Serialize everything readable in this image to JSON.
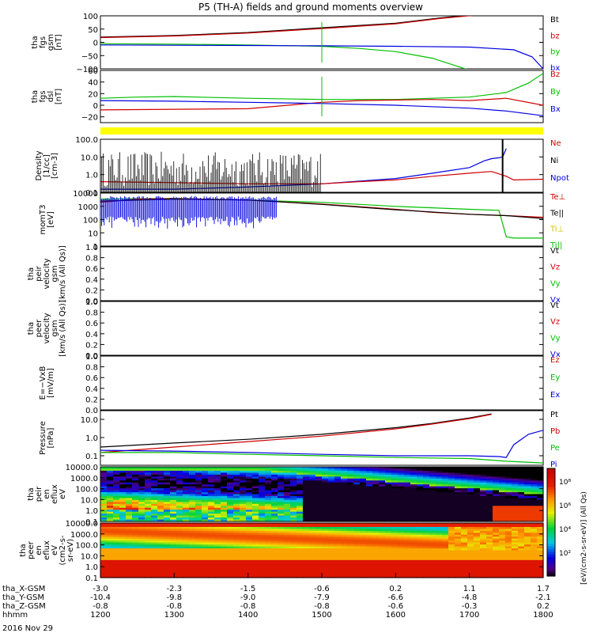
{
  "title": "P5 (TH-A) fields and ground moments overview",
  "chart_data": {
    "type": "multi-panel-timeseries",
    "date": "2016 Nov 29",
    "time_ticks": [
      "1200",
      "1300",
      "1400",
      "1500",
      "1600",
      "1700",
      "1800"
    ],
    "x_range_hours": [
      12,
      18
    ],
    "orbit_rows": [
      {
        "label": "tha_X-GSM",
        "values": [
          "-3.0",
          "-2.3",
          "-1.5",
          "-0.6",
          "0.2",
          "1.1",
          "1.7"
        ]
      },
      {
        "label": "tha_Y-GSM",
        "values": [
          "-10.4",
          "-9.8",
          "-9.0",
          "-7.9",
          "-6.6",
          "-4.8",
          "-2.1"
        ]
      },
      {
        "label": "tha_Z-GSM",
        "values": [
          "-0.8",
          "-0.8",
          "-0.8",
          "-0.8",
          "-0.6",
          "-0.3",
          "0.2"
        ]
      },
      {
        "label": "hhmm",
        "values": [
          "1200",
          "1300",
          "1400",
          "1500",
          "1600",
          "1700",
          "1800"
        ]
      }
    ],
    "panels": [
      {
        "id": "fgs_gsm",
        "ylabel": [
          "tha",
          "fgs",
          "gsm",
          "[nT]"
        ],
        "ylim": [
          -100,
          100
        ],
        "log": false,
        "yticks": [
          100,
          50,
          0,
          -50,
          -100
        ],
        "ytick_labels": [
          "100",
          "50",
          "0",
          "−50",
          "−100"
        ],
        "legend": [
          {
            "name": "Bt",
            "color": "#000000"
          },
          {
            "name": "bz",
            "color": "#d00000"
          },
          {
            "name": "by",
            "color": "#00c000"
          },
          {
            "name": "bx",
            "color": "#0000e0"
          }
        ],
        "series": [
          {
            "name": "Bt",
            "color": "#000000",
            "x": [
              12.0,
              13.0,
              14.0,
              15.0,
              16.0,
              16.6,
              17.1
            ],
            "y": [
              20,
              26,
              37,
              55,
              72,
              92,
              105
            ]
          },
          {
            "name": "bz",
            "color": "#d00000",
            "x": [
              12.0,
              13.0,
              14.0,
              15.0,
              16.0,
              16.6,
              17.1
            ],
            "y": [
              18,
              24,
              35,
              52,
              70,
              90,
              103
            ]
          },
          {
            "name": "by",
            "color": "#00c000",
            "x": [
              12.0,
              13.0,
              14.0,
              15.0,
              15.5,
              16.0,
              16.5,
              17.0
            ],
            "y": [
              -5,
              -7,
              -10,
              -15,
              -23,
              -35,
              -60,
              -105
            ]
          },
          {
            "name": "bx",
            "color": "#0000e0",
            "x": [
              12.0,
              13.0,
              14.0,
              15.0,
              16.0,
              17.0,
              17.6,
              17.85,
              18.0
            ],
            "y": [
              -10,
              -11,
              -12,
              -13,
              -15,
              -18,
              -28,
              -55,
              -100
            ]
          }
        ]
      },
      {
        "id": "fgs_dsl",
        "ylabel": [
          "tha",
          "fgs",
          "dsl",
          "[nT]"
        ],
        "ylim": [
          -30,
          60
        ],
        "log": false,
        "yticks": [
          60,
          40,
          20,
          0,
          -20
        ],
        "ytick_labels": [
          "60",
          "40",
          "20",
          "0",
          "−20"
        ],
        "legend": [
          {
            "name": "Bz",
            "color": "#d00000"
          },
          {
            "name": "By",
            "color": "#00c000"
          },
          {
            "name": "Bx",
            "color": "#0000e0"
          }
        ],
        "series": [
          {
            "name": "By",
            "color": "#00c000",
            "x": [
              12.0,
              12.5,
              13.0,
              14.0,
              15.0,
              16.0,
              17.0,
              17.5,
              17.8,
              18.0
            ],
            "y": [
              12,
              14,
              15,
              12,
              10,
              10,
              14,
              22,
              38,
              55
            ]
          },
          {
            "name": "Bz",
            "color": "#d00000",
            "x": [
              12.0,
              13.0,
              14.0,
              15.0,
              15.5,
              16.0,
              16.5,
              17.0,
              17.5,
              18.0
            ],
            "y": [
              -8,
              -7,
              -6,
              5,
              8,
              9,
              10,
              8,
              12,
              0
            ]
          },
          {
            "name": "Bx",
            "color": "#0000e0",
            "x": [
              12.0,
              13.0,
              14.0,
              15.0,
              16.0,
              17.0,
              17.5,
              18.0
            ],
            "y": [
              8,
              7,
              5,
              3,
              0,
              -5,
              -10,
              -18
            ]
          }
        ]
      },
      {
        "id": "density",
        "ylabel": [
          "Density",
          "[1/cc]",
          "[cm-3]"
        ],
        "ylim": [
          0.1,
          100
        ],
        "log": true,
        "yticks": [
          100,
          10,
          1,
          0.1
        ],
        "ytick_labels": [
          "100.0",
          "10.0",
          "1.0",
          "0.1"
        ],
        "legend": [
          {
            "name": "Ne",
            "color": "#d00000"
          },
          {
            "name": "Ni",
            "color": "#000000"
          },
          {
            "name": "Npot",
            "color": "#0000e0"
          }
        ],
        "series": [
          {
            "name": "Npot",
            "color": "#0000e0",
            "x": [
              12.0,
              13.0,
              14.0,
              15.0,
              16.0,
              16.5,
              17.0,
              17.2,
              17.3,
              17.4,
              17.45,
              17.5
            ],
            "y": [
              0.15,
              0.15,
              0.2,
              0.3,
              0.6,
              1.2,
              2.5,
              6,
              8,
              9,
              10,
              30
            ]
          },
          {
            "name": "Ne",
            "color": "#d00000",
            "x": [
              12.0,
              13.0,
              14.0,
              15.0,
              15.5,
              16.0,
              16.5,
              17.0,
              17.3,
              17.5,
              17.6,
              18.0
            ],
            "y": [
              0.4,
              0.35,
              0.3,
              0.3,
              0.4,
              0.5,
              0.8,
              1.2,
              1.5,
              0.8,
              0.5,
              0.55
            ]
          }
        ]
      },
      {
        "id": "mom_temperature",
        "ylabel": [
          "momT3",
          "[eV]"
        ],
        "ylim": [
          1,
          10000
        ],
        "log": true,
        "yticks": [
          10000,
          1000,
          100,
          10,
          1
        ],
        "ytick_labels": [
          "10000",
          "1000",
          "100",
          "10",
          "1"
        ],
        "legend": [
          {
            "name": "Te⊥",
            "color": "#d00000"
          },
          {
            "name": "Te||",
            "color": "#000000"
          },
          {
            "name": "Ti⊥",
            "color": "#d0c000"
          },
          {
            "name": "Ti||",
            "color": "#00c000"
          }
        ],
        "series": [
          {
            "name": "Ti||",
            "color": "#00c000",
            "x": [
              12.0,
              13.0,
              14.0,
              15.0,
              16.0,
              17.0,
              17.4,
              17.5,
              17.6,
              18.0
            ],
            "y": [
              3500,
              4000,
              3000,
              2000,
              1000,
              600,
              500,
              5,
              4,
              4
            ]
          },
          {
            "name": "Te⊥",
            "color": "#d00000",
            "x": [
              12.0,
              12.5,
              13.0,
              14.0,
              15.0,
              16.0,
              16.5,
              17.0,
              17.5,
              18.0
            ],
            "y": [
              2000,
              3500,
              3800,
              3000,
              1500,
              600,
              350,
              250,
              200,
              150
            ]
          },
          {
            "name": "Te||",
            "color": "#000000",
            "x": [
              12.0,
              13.0,
              14.0,
              15.0,
              16.0,
              17.0,
              17.5,
              18.0
            ],
            "y": [
              2500,
              3500,
              3000,
              1400,
              550,
              250,
              200,
              120
            ]
          }
        ]
      },
      {
        "id": "peir_velocity",
        "ylabel": [
          "tha",
          "peir",
          "velocity",
          "gsm",
          "[km/s (All Qs)]"
        ],
        "ylim": [
          0,
          1
        ],
        "log": false,
        "yticks": [
          1,
          0.8,
          0.6,
          0.4,
          0.2,
          0
        ],
        "ytick_labels": [
          "1.0",
          "0.8",
          "0.6",
          "0.4",
          "0.2",
          "0.0"
        ],
        "legend": [
          {
            "name": "Vt",
            "color": "#000000"
          },
          {
            "name": "Vz",
            "color": "#d00000"
          },
          {
            "name": "Vy",
            "color": "#00c000"
          },
          {
            "name": "Vx",
            "color": "#0000e0"
          }
        ],
        "series": []
      },
      {
        "id": "peer_velocity",
        "ylabel": [
          "tha",
          "peer",
          "velocity",
          "gsm",
          "[km/s (All Qs)]"
        ],
        "ylim": [
          0,
          1
        ],
        "log": false,
        "yticks": [
          1,
          0.8,
          0.6,
          0.4,
          0.2,
          0
        ],
        "ytick_labels": [
          "1.0",
          "0.8",
          "0.6",
          "0.4",
          "0.2",
          "0.0"
        ],
        "legend": [
          {
            "name": "Vt",
            "color": "#000000"
          },
          {
            "name": "Vz",
            "color": "#d00000"
          },
          {
            "name": "Vy",
            "color": "#00c000"
          },
          {
            "name": "Vx",
            "color": "#0000e0"
          }
        ],
        "series": []
      },
      {
        "id": "efield",
        "ylabel": [
          "E=−VxB",
          "[mV/m]"
        ],
        "ylim": [
          0,
          1
        ],
        "log": false,
        "yticks": [
          1,
          0.8,
          0.6,
          0.4,
          0.2,
          0
        ],
        "ytick_labels": [
          "1.0",
          "0.8",
          "0.6",
          "0.4",
          "0.2",
          "0.0"
        ],
        "legend": [
          {
            "name": "Ez",
            "color": "#d00000"
          },
          {
            "name": "Ey",
            "color": "#00c000"
          },
          {
            "name": "Ex",
            "color": "#0000e0"
          }
        ],
        "series": []
      },
      {
        "id": "pressure",
        "ylabel": [
          "Pressure",
          "[nPa]"
        ],
        "ylim": [
          0.03,
          30
        ],
        "log": true,
        "yticks": [
          10,
          1,
          0.1
        ],
        "ytick_labels": [
          "10.0",
          "1.0",
          "0.1"
        ],
        "legend": [
          {
            "name": "Pt",
            "color": "#000000"
          },
          {
            "name": "Pb",
            "color": "#d00000"
          },
          {
            "name": "Pe",
            "color": "#00c000"
          },
          {
            "name": "Pi",
            "color": "#0000e0"
          }
        ],
        "series": [
          {
            "name": "Pt",
            "color": "#000000",
            "x": [
              12.0,
              13.0,
              14.0,
              15.0,
              16.0,
              16.5,
              17.0,
              17.3
            ],
            "y": [
              0.3,
              0.5,
              0.8,
              1.5,
              3.5,
              6,
              12,
              20
            ]
          },
          {
            "name": "Pb",
            "color": "#d00000",
            "x": [
              12.0,
              13.0,
              14.0,
              15.0,
              16.0,
              16.5,
              17.0,
              17.3
            ],
            "y": [
              0.15,
              0.3,
              0.6,
              1.2,
              3,
              5.5,
              11,
              19
            ]
          },
          {
            "name": "Pe",
            "color": "#00c000",
            "x": [
              12.0,
              13.0,
              14.0,
              15.0,
              16.0,
              17.0,
              17.5,
              18.0
            ],
            "y": [
              0.15,
              0.15,
              0.12,
              0.1,
              0.08,
              0.07,
              0.05,
              0.04
            ]
          },
          {
            "name": "Pi",
            "color": "#0000e0",
            "x": [
              12.0,
              13.0,
              14.0,
              15.0,
              16.0,
              17.0,
              17.4,
              17.5,
              17.6,
              17.8,
              18.0
            ],
            "y": [
              0.2,
              0.18,
              0.15,
              0.12,
              0.1,
              0.1,
              0.09,
              0.08,
              0.4,
              1.5,
              2.5
            ]
          }
        ]
      },
      {
        "id": "peir_spectrogram",
        "ylabel": [
          "tha",
          "peir",
          "en",
          "eflux",
          "eV"
        ],
        "ylim": [
          0.1,
          10000
        ],
        "log": true,
        "yticks": [
          10000,
          1000,
          100,
          10,
          1,
          0.1
        ],
        "ytick_labels": [
          "10000.0",
          "1000.0",
          "100.0",
          "10.0",
          "1.0",
          "0.1"
        ]
      },
      {
        "id": "peer_spectrogram",
        "ylabel": [
          "tha",
          "peer",
          "en",
          "eflux",
          "eV",
          "(cm2-s-",
          "sr-eV)"
        ],
        "ylim": [
          0.1,
          10000
        ],
        "log": true,
        "yticks": [
          10000,
          1000,
          100,
          10,
          1,
          0.1
        ],
        "ytick_labels": [
          "10000.0",
          "1000.0",
          "100.0",
          "10.0",
          "1.0",
          "0.1"
        ]
      }
    ],
    "colorbar": {
      "label": "[eV/(cm2-s-sr-eV)] (All Qs)",
      "tick_labels": [
        "10⁸",
        "10⁶",
        "10⁴",
        "10²"
      ]
    }
  }
}
